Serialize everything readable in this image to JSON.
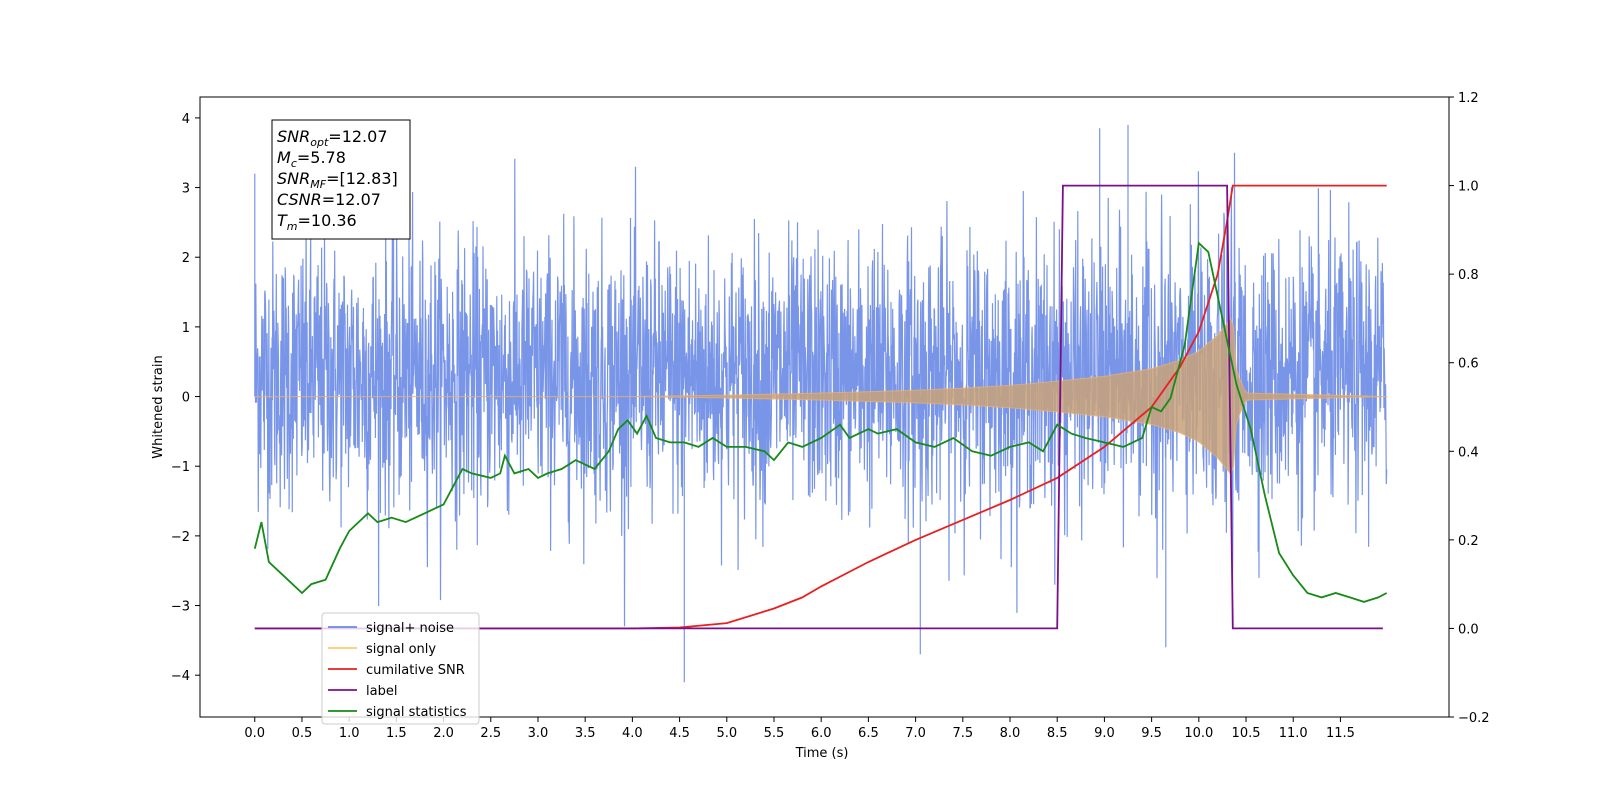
{
  "chart_data": {
    "type": "line",
    "xlabel": "Time (s)",
    "ylabel": "Whitened strain",
    "xlim": [
      -0.58,
      12.65
    ],
    "ylim": [
      -4.6,
      4.3
    ],
    "y2lim": [
      -0.2,
      1.2
    ],
    "x_ticks": [
      0.0,
      0.5,
      1.0,
      1.5,
      2.0,
      2.5,
      3.0,
      3.5,
      4.0,
      4.5,
      5.0,
      5.5,
      6.0,
      6.5,
      7.0,
      7.5,
      8.0,
      8.5,
      9.0,
      9.5,
      10.0,
      10.5,
      11.0,
      11.5
    ],
    "x_tick_labels": [
      "0.0",
      "0.5",
      "1.0",
      "1.5",
      "2.0",
      "2.5",
      "3.0",
      "3.5",
      "4.0",
      "4.5",
      "5.0",
      "5.5",
      "6.0",
      "6.5",
      "7.0",
      "7.5",
      "8.0",
      "8.5",
      "9.0",
      "9.5",
      "10.0",
      "10.5",
      "11.0",
      "11.5"
    ],
    "y_ticks": [
      -4,
      -3,
      -2,
      -1,
      0,
      1,
      2,
      3,
      4
    ],
    "y_tick_labels": [
      "−4",
      "−3",
      "−2",
      "−1",
      "0",
      "1",
      "2",
      "3",
      "4"
    ],
    "y2_ticks": [
      -0.2,
      0.0,
      0.2,
      0.4,
      0.6,
      0.8,
      1.0,
      1.2
    ],
    "y2_tick_labels": [
      "−0.2",
      "0.0",
      "0.2",
      "0.4",
      "0.6",
      "0.8",
      "1.0",
      "1.2"
    ],
    "legend_position": "lower-left",
    "annotation": {
      "lines": [
        {
          "main": "SNR",
          "sub": "opt",
          "rest": "=12.07"
        },
        {
          "main": "M",
          "sub": "c",
          "rest": "=5.78"
        },
        {
          "main": "SNR",
          "sub": "MF",
          "rest": "=[12.83]"
        },
        {
          "main": "CSNR",
          "sub": "",
          "rest": "=12.07"
        },
        {
          "main": "T",
          "sub": "m",
          "rest": "=10.36"
        }
      ]
    },
    "series": [
      {
        "name": "signal+ noise",
        "axis": "left",
        "color": "#6a8ae6",
        "description_points": {
          "x_range": [
            0.0,
            11.99
          ],
          "envelope_typical": [
            -2.0,
            2.5
          ],
          "peak_values": [
            [
              0.0,
              3.2
            ],
            [
              4.55,
              -4.1
            ],
            [
              7.05,
              -3.7
            ],
            [
              8.95,
              3.85
            ],
            [
              9.25,
              3.9
            ],
            [
              9.65,
              -3.6
            ]
          ]
        }
      },
      {
        "name": "signal only",
        "axis": "left",
        "color": "#c8a27a",
        "envelope": {
          "x": [
            0.0,
            4.0,
            5.0,
            6.0,
            7.0,
            7.5,
            8.0,
            8.5,
            9.0,
            9.5,
            9.8,
            10.0,
            10.2,
            10.3,
            10.36,
            10.4,
            10.5,
            12.0
          ],
          "amp": [
            0.0,
            0.0,
            0.02,
            0.05,
            0.09,
            0.12,
            0.16,
            0.22,
            0.29,
            0.4,
            0.52,
            0.65,
            0.88,
            1.05,
            1.15,
            0.35,
            0.05,
            0.0
          ]
        }
      },
      {
        "name": "cumilative SNR",
        "axis": "right",
        "color": "#e82020",
        "x": [
          0.0,
          4.0,
          4.5,
          5.0,
          5.5,
          5.8,
          6.0,
          6.5,
          7.0,
          7.5,
          8.0,
          8.5,
          9.0,
          9.5,
          9.8,
          10.0,
          10.2,
          10.3,
          10.36,
          10.4,
          11.0,
          11.5,
          11.99
        ],
        "values": [
          0.0,
          0.0,
          0.002,
          0.012,
          0.045,
          0.07,
          0.095,
          0.15,
          0.2,
          0.245,
          0.29,
          0.34,
          0.41,
          0.5,
          0.59,
          0.67,
          0.8,
          0.92,
          1.0,
          1.0,
          1.0,
          1.0,
          1.0
        ]
      },
      {
        "name": "label",
        "axis": "right",
        "color": "#7b0f8a",
        "x": [
          0.0,
          8.5,
          8.56,
          10.3,
          10.36,
          11.95
        ],
        "values": [
          0.0,
          0.0,
          1.0,
          1.0,
          0.0,
          0.0
        ]
      },
      {
        "name": "signal statistics",
        "axis": "right",
        "color": "#178a17",
        "x": [
          0.0,
          0.07,
          0.15,
          0.3,
          0.5,
          0.6,
          0.75,
          0.9,
          1.0,
          1.1,
          1.2,
          1.3,
          1.45,
          1.6,
          1.8,
          2.0,
          2.1,
          2.2,
          2.3,
          2.5,
          2.6,
          2.65,
          2.75,
          2.9,
          3.0,
          3.1,
          3.25,
          3.4,
          3.6,
          3.75,
          3.85,
          3.95,
          4.05,
          4.15,
          4.25,
          4.4,
          4.55,
          4.7,
          4.85,
          5.0,
          5.2,
          5.4,
          5.5,
          5.65,
          5.8,
          6.0,
          6.2,
          6.3,
          6.5,
          6.6,
          6.8,
          7.0,
          7.2,
          7.4,
          7.6,
          7.8,
          8.0,
          8.2,
          8.35,
          8.5,
          8.65,
          8.8,
          9.0,
          9.2,
          9.4,
          9.5,
          9.6,
          9.7,
          9.85,
          10.0,
          10.1,
          10.2,
          10.3,
          10.4,
          10.55,
          10.7,
          10.85,
          11.0,
          11.15,
          11.3,
          11.45,
          11.6,
          11.75,
          11.9,
          11.99
        ],
        "values": [
          0.18,
          0.24,
          0.15,
          0.12,
          0.08,
          0.1,
          0.11,
          0.18,
          0.22,
          0.24,
          0.26,
          0.24,
          0.25,
          0.24,
          0.26,
          0.28,
          0.32,
          0.36,
          0.35,
          0.34,
          0.35,
          0.39,
          0.35,
          0.36,
          0.34,
          0.35,
          0.36,
          0.38,
          0.36,
          0.4,
          0.45,
          0.47,
          0.44,
          0.48,
          0.43,
          0.42,
          0.42,
          0.41,
          0.43,
          0.41,
          0.41,
          0.4,
          0.38,
          0.42,
          0.41,
          0.43,
          0.46,
          0.43,
          0.45,
          0.44,
          0.45,
          0.42,
          0.41,
          0.43,
          0.4,
          0.39,
          0.41,
          0.42,
          0.4,
          0.46,
          0.44,
          0.43,
          0.42,
          0.41,
          0.43,
          0.5,
          0.49,
          0.52,
          0.64,
          0.87,
          0.85,
          0.75,
          0.65,
          0.55,
          0.45,
          0.3,
          0.17,
          0.12,
          0.08,
          0.07,
          0.08,
          0.07,
          0.06,
          0.07,
          0.08
        ]
      }
    ],
    "legend_entries": [
      "signal+ noise",
      "signal only",
      "cumilative SNR",
      "label",
      "signal statistics"
    ]
  }
}
